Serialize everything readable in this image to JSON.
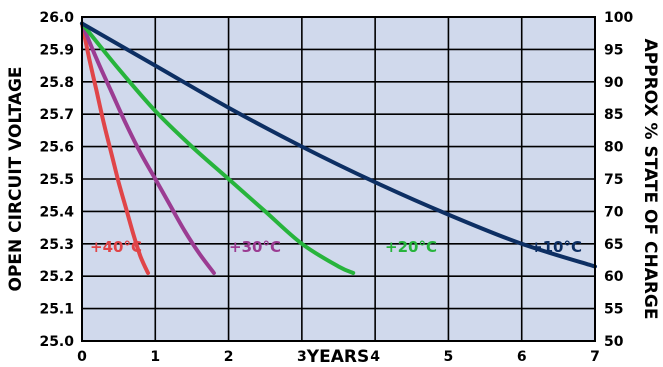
{
  "chart_data": {
    "type": "line",
    "xlabel": "YEARS",
    "ylabel": "OPEN CIRCUIT VOLTAGE",
    "y2label": "APPROX % STATE OF CHARGE",
    "xlim": [
      0,
      7
    ],
    "ylim": [
      25.0,
      26.0
    ],
    "y2lim": [
      50,
      100
    ],
    "x_ticks": [
      "0",
      "1",
      "2",
      "3",
      "4",
      "5",
      "6",
      "7"
    ],
    "y_ticks": [
      "25.0",
      "25.1",
      "25.2",
      "25.3",
      "25.4",
      "25.5",
      "25.6",
      "25.7",
      "25.8",
      "25.9",
      "26.0"
    ],
    "y2_ticks": [
      "50",
      "55",
      "60",
      "65",
      "70",
      "75",
      "80",
      "85",
      "90",
      "95",
      "100"
    ],
    "grid": true,
    "plot_background": "#d0d9ec",
    "series": [
      {
        "name": "+40°C",
        "color": "#e04548",
        "x": [
          0,
          0.1,
          0.2,
          0.3,
          0.4,
          0.5,
          0.6,
          0.7,
          0.8,
          0.9
        ],
        "y": [
          25.98,
          25.87,
          25.77,
          25.67,
          25.58,
          25.49,
          25.41,
          25.33,
          25.26,
          25.21
        ]
      },
      {
        "name": "+30°C",
        "color": "#9b3c92",
        "x": [
          0,
          0.2,
          0.4,
          0.6,
          0.8,
          1.0,
          1.2,
          1.4,
          1.6,
          1.8
        ],
        "y": [
          25.98,
          25.87,
          25.77,
          25.67,
          25.58,
          25.5,
          25.42,
          25.34,
          25.27,
          25.21
        ]
      },
      {
        "name": "+20°C",
        "color": "#27b43c",
        "x": [
          0,
          0.5,
          1.0,
          1.5,
          2.0,
          2.5,
          3.0,
          3.5,
          3.7
        ],
        "y": [
          25.98,
          25.84,
          25.71,
          25.6,
          25.5,
          25.4,
          25.3,
          25.23,
          25.21
        ]
      },
      {
        "name": "+10°C",
        "color": "#0d2f63",
        "x": [
          0,
          1,
          2,
          3,
          4,
          5,
          6,
          7
        ],
        "y": [
          25.98,
          25.85,
          25.72,
          25.6,
          25.49,
          25.39,
          25.3,
          25.23
        ]
      }
    ]
  },
  "series_labels": [
    {
      "text": "+40°C",
      "color": "#e04548"
    },
    {
      "text": "+30°C",
      "color": "#9b3c92"
    },
    {
      "text": "+20°C",
      "color": "#27b43c"
    },
    {
      "text": "+10°C",
      "color": "#0d2f63"
    }
  ]
}
